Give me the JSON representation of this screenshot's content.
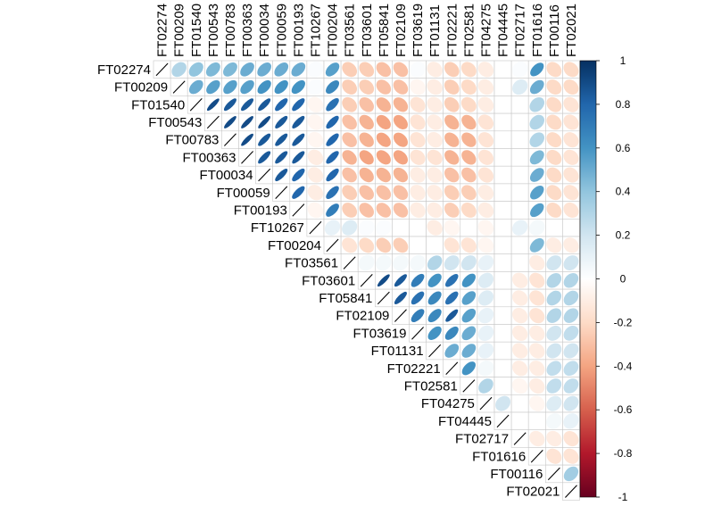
{
  "chart_data": {
    "type": "heatmap",
    "subtype": "correlation-ellipse-upper-triangle",
    "labels": [
      "FT02274",
      "FT00209",
      "FT01540",
      "FT00543",
      "FT00783",
      "FT00363",
      "FT00034",
      "FT00059",
      "FT00193",
      "FT10267",
      "FT00204",
      "FT03561",
      "FT03601",
      "FT05841",
      "FT02109",
      "FT03619",
      "FT01131",
      "FT02221",
      "FT02581",
      "FT04275",
      "FT04445",
      "FT02717",
      "FT01616",
      "FT00116",
      "FT02021"
    ],
    "color_scale": {
      "range": [
        -1,
        1
      ],
      "ticks": [
        1,
        0.8,
        0.6,
        0.4,
        0.2,
        0,
        -0.2,
        -0.4,
        -0.6,
        -0.8,
        -1
      ],
      "colors": [
        "#67001F",
        "#B2182B",
        "#D6604D",
        "#F4A582",
        "#FDDBC7",
        "#FFFFFF",
        "#D1E5F0",
        "#92C5DE",
        "#4393C3",
        "#2166AC",
        "#053061"
      ]
    },
    "matrix": [
      [
        1,
        0.3,
        0.4,
        0.45,
        0.45,
        0.5,
        0.5,
        0.5,
        0.5,
        0.02,
        0.55,
        -0.25,
        -0.25,
        -0.3,
        -0.3,
        0.02,
        -0.1,
        -0.25,
        -0.2,
        -0.1,
        0.0,
        0.02,
        0.6,
        -0.2,
        -0.2
      ],
      [
        0.3,
        1,
        0.5,
        0.55,
        0.55,
        0.55,
        0.6,
        0.6,
        0.6,
        0.02,
        0.65,
        -0.25,
        -0.25,
        -0.3,
        -0.3,
        -0.05,
        -0.1,
        -0.25,
        -0.2,
        -0.1,
        0.0,
        0.15,
        0.5,
        -0.2,
        -0.2
      ],
      [
        0.4,
        0.5,
        1,
        0.9,
        0.85,
        0.85,
        0.85,
        0.8,
        0.8,
        -0.05,
        0.75,
        -0.25,
        -0.3,
        -0.35,
        -0.35,
        -0.15,
        -0.1,
        -0.25,
        -0.2,
        -0.1,
        0.0,
        0.0,
        0.3,
        -0.2,
        -0.15
      ],
      [
        0.45,
        0.55,
        0.9,
        1,
        0.9,
        0.9,
        0.9,
        0.85,
        0.85,
        -0.05,
        0.8,
        -0.3,
        -0.35,
        -0.4,
        -0.4,
        -0.15,
        -0.1,
        -0.35,
        -0.35,
        -0.15,
        0.0,
        0.0,
        0.3,
        -0.2,
        -0.15
      ],
      [
        0.45,
        0.55,
        0.85,
        0.9,
        1,
        0.9,
        0.85,
        0.85,
        0.85,
        -0.05,
        0.8,
        -0.3,
        -0.35,
        -0.4,
        -0.4,
        -0.15,
        -0.1,
        -0.35,
        -0.35,
        -0.15,
        0.0,
        0.0,
        0.3,
        -0.2,
        -0.15
      ],
      [
        0.5,
        0.55,
        0.85,
        0.9,
        0.9,
        1,
        0.85,
        0.85,
        0.85,
        -0.1,
        0.8,
        -0.35,
        -0.4,
        -0.4,
        -0.4,
        -0.15,
        -0.15,
        -0.35,
        -0.35,
        -0.15,
        0.0,
        0.0,
        0.45,
        -0.2,
        -0.15
      ],
      [
        0.5,
        0.6,
        0.85,
        0.9,
        0.85,
        0.85,
        1,
        0.85,
        0.8,
        -0.1,
        0.8,
        -0.3,
        -0.35,
        -0.35,
        -0.35,
        -0.1,
        -0.1,
        -0.3,
        -0.3,
        -0.15,
        0.0,
        0.0,
        0.5,
        -0.2,
        -0.15
      ],
      [
        0.5,
        0.6,
        0.8,
        0.85,
        0.85,
        0.85,
        0.85,
        1,
        0.8,
        -0.1,
        0.75,
        -0.25,
        -0.3,
        -0.3,
        -0.3,
        -0.1,
        -0.1,
        -0.25,
        -0.25,
        -0.1,
        0.0,
        0.0,
        0.55,
        -0.2,
        -0.15
      ],
      [
        0.5,
        0.6,
        0.8,
        0.85,
        0.85,
        0.85,
        0.8,
        0.8,
        1,
        -0.05,
        0.7,
        -0.25,
        -0.3,
        -0.3,
        -0.3,
        -0.1,
        -0.1,
        -0.25,
        -0.2,
        -0.1,
        0.0,
        0.0,
        0.55,
        -0.2,
        -0.15
      ],
      [
        0.02,
        0.02,
        -0.05,
        -0.05,
        -0.05,
        -0.1,
        -0.1,
        -0.1,
        -0.05,
        1,
        0.1,
        0.15,
        0.02,
        0.02,
        0.0,
        0.0,
        -0.1,
        -0.05,
        0.0,
        -0.05,
        0.0,
        0.1,
        0.05,
        0.0,
        0.0
      ],
      [
        0.55,
        0.65,
        0.75,
        0.8,
        0.8,
        0.8,
        0.8,
        0.75,
        0.7,
        0.1,
        1,
        -0.15,
        -0.2,
        -0.25,
        -0.25,
        0.0,
        0.0,
        -0.15,
        -0.15,
        -0.05,
        0.0,
        0.0,
        0.45,
        -0.1,
        -0.1
      ],
      [
        -0.25,
        -0.25,
        -0.25,
        -0.3,
        -0.3,
        -0.35,
        -0.3,
        -0.25,
        -0.25,
        0.15,
        -0.15,
        1,
        0.05,
        0.05,
        0.05,
        0.05,
        0.3,
        0.2,
        0.2,
        0.1,
        0.0,
        0.0,
        -0.1,
        0.2,
        0.2
      ],
      [
        -0.25,
        -0.25,
        -0.3,
        -0.35,
        -0.35,
        -0.4,
        -0.35,
        -0.3,
        -0.3,
        0.02,
        -0.2,
        0.05,
        1,
        0.9,
        0.85,
        0.7,
        0.6,
        0.75,
        0.6,
        0.15,
        0.0,
        -0.1,
        -0.15,
        0.3,
        0.3
      ],
      [
        -0.3,
        -0.3,
        -0.35,
        -0.4,
        -0.4,
        -0.4,
        -0.35,
        -0.3,
        -0.3,
        0.02,
        -0.25,
        0.05,
        0.9,
        1,
        0.85,
        0.75,
        0.65,
        0.75,
        0.55,
        0.15,
        0.0,
        -0.1,
        -0.15,
        0.3,
        0.3
      ],
      [
        -0.3,
        -0.3,
        -0.35,
        -0.4,
        -0.4,
        -0.4,
        -0.35,
        -0.3,
        -0.3,
        0.0,
        -0.25,
        0.05,
        0.85,
        0.85,
        1,
        0.7,
        0.65,
        0.85,
        0.55,
        0.1,
        0.0,
        -0.1,
        -0.15,
        0.3,
        0.3
      ],
      [
        0.02,
        -0.05,
        -0.15,
        -0.15,
        -0.15,
        -0.15,
        -0.1,
        -0.1,
        -0.1,
        0.0,
        0.0,
        0.05,
        0.7,
        0.75,
        0.7,
        1,
        0.6,
        0.65,
        0.5,
        0.1,
        0.0,
        -0.1,
        -0.1,
        0.2,
        0.25
      ],
      [
        -0.1,
        -0.1,
        -0.1,
        -0.1,
        -0.1,
        -0.15,
        -0.1,
        -0.1,
        -0.1,
        -0.1,
        0.0,
        0.3,
        0.6,
        0.65,
        0.65,
        0.6,
        1,
        0.5,
        0.5,
        0.1,
        0.0,
        -0.1,
        -0.1,
        0.2,
        0.2
      ],
      [
        -0.25,
        -0.25,
        -0.25,
        -0.35,
        -0.35,
        -0.35,
        -0.3,
        -0.25,
        -0.25,
        -0.05,
        -0.15,
        0.2,
        0.75,
        0.75,
        0.85,
        0.65,
        0.5,
        1,
        0.6,
        0.05,
        0.0,
        -0.1,
        -0.1,
        0.25,
        0.25
      ],
      [
        -0.2,
        -0.2,
        -0.2,
        -0.35,
        -0.35,
        -0.35,
        -0.3,
        -0.25,
        -0.2,
        0.0,
        -0.15,
        0.2,
        0.6,
        0.55,
        0.55,
        0.5,
        0.5,
        0.6,
        1,
        0.3,
        0.0,
        -0.05,
        -0.1,
        0.25,
        0.25
      ],
      [
        -0.1,
        -0.1,
        -0.1,
        -0.15,
        -0.15,
        -0.15,
        -0.15,
        -0.1,
        -0.1,
        -0.05,
        -0.05,
        0.1,
        0.15,
        0.15,
        0.1,
        0.1,
        0.1,
        0.05,
        0.3,
        1,
        0.2,
        0.0,
        -0.05,
        0.15,
        0.2
      ],
      [
        0.0,
        0.0,
        0.0,
        0.0,
        0.0,
        0.0,
        0.0,
        0.0,
        0.0,
        0.0,
        0.0,
        0.0,
        0.0,
        0.0,
        0.0,
        0.0,
        0.0,
        0.0,
        0.0,
        0.2,
        1,
        0.0,
        0.0,
        0.05,
        0.1
      ],
      [
        0.02,
        0.15,
        0.0,
        0.0,
        0.0,
        0.0,
        0.0,
        0.0,
        0.0,
        0.1,
        0.0,
        0.0,
        -0.1,
        -0.1,
        -0.1,
        -0.1,
        -0.1,
        -0.1,
        -0.05,
        0.0,
        0.0,
        1,
        -0.1,
        -0.1,
        -0.15
      ],
      [
        0.6,
        0.5,
        0.3,
        0.3,
        0.3,
        0.45,
        0.5,
        0.55,
        0.55,
        0.05,
        0.45,
        -0.1,
        -0.15,
        -0.15,
        -0.15,
        -0.1,
        -0.1,
        -0.1,
        -0.1,
        -0.05,
        0.0,
        -0.1,
        1,
        -0.15,
        -0.15
      ],
      [
        -0.2,
        -0.2,
        -0.2,
        -0.2,
        -0.2,
        -0.2,
        -0.2,
        -0.2,
        -0.2,
        0.0,
        -0.1,
        0.2,
        0.3,
        0.3,
        0.3,
        0.2,
        0.2,
        0.25,
        0.25,
        0.15,
        0.05,
        -0.1,
        -0.15,
        1,
        0.35
      ],
      [
        -0.2,
        -0.2,
        -0.15,
        -0.15,
        -0.15,
        -0.15,
        -0.15,
        -0.15,
        -0.15,
        0.0,
        -0.1,
        0.2,
        0.3,
        0.3,
        0.3,
        0.25,
        0.2,
        0.25,
        0.25,
        0.2,
        0.1,
        -0.15,
        -0.15,
        0.35,
        1
      ]
    ]
  }
}
